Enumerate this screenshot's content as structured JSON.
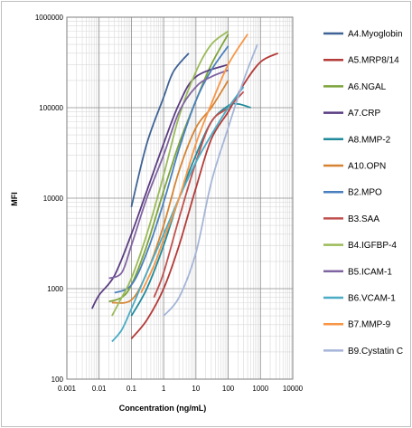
{
  "chart_data": {
    "type": "line",
    "title": "",
    "xlabel": "Concentration (ng/mL)",
    "ylabel": "MFI",
    "xscale": "log",
    "yscale": "log",
    "xlim": [
      0.001,
      10000
    ],
    "ylim": [
      100,
      1000000
    ],
    "x_ticks": [
      "0.001",
      "0.01",
      "0.1",
      "1",
      "10",
      "100",
      "1000",
      "10000"
    ],
    "y_ticks": [
      "100",
      "1000",
      "10000",
      "100000",
      "1000000"
    ],
    "grid": true,
    "legend_position": "right",
    "series": [
      {
        "name": "A4.Myoglobin",
        "color": "#3f6396",
        "points": [
          [
            0.1,
            8000
          ],
          [
            0.3,
            40000
          ],
          [
            1,
            130000
          ],
          [
            2,
            250000
          ],
          [
            6,
            400000
          ]
        ]
      },
      {
        "name": "A5.MRP8/14",
        "color": "#b33b38",
        "points": [
          [
            0.1,
            280
          ],
          [
            0.3,
            450
          ],
          [
            1,
            1000
          ],
          [
            3,
            3000
          ],
          [
            10,
            13000
          ],
          [
            30,
            45000
          ],
          [
            100,
            90000
          ],
          [
            300,
            180000
          ],
          [
            1000,
            320000
          ],
          [
            3500,
            400000
          ]
        ]
      },
      {
        "name": "A6.NGAL",
        "color": "#7da43b",
        "points": [
          [
            0.02,
            720
          ],
          [
            0.05,
            800
          ],
          [
            0.1,
            1100
          ],
          [
            0.3,
            3000
          ],
          [
            1,
            12000
          ],
          [
            3,
            40000
          ],
          [
            10,
            120000
          ],
          [
            30,
            300000
          ],
          [
            100,
            650000
          ]
        ]
      },
      {
        "name": "A7.CRP",
        "color": "#5b3d82",
        "points": [
          [
            0.006,
            600
          ],
          [
            0.01,
            850
          ],
          [
            0.03,
            1400
          ],
          [
            0.1,
            4000
          ],
          [
            0.3,
            12000
          ],
          [
            1,
            40000
          ],
          [
            3,
            110000
          ],
          [
            10,
            220000
          ],
          [
            100,
            300000
          ]
        ]
      },
      {
        "name": "A8.MMP-2",
        "color": "#1f8a9a",
        "points": [
          [
            0.1,
            500
          ],
          [
            0.3,
            1000
          ],
          [
            1,
            3000
          ],
          [
            3,
            10000
          ],
          [
            10,
            30000
          ],
          [
            30,
            70000
          ],
          [
            100,
            105000
          ],
          [
            200,
            110000
          ],
          [
            500,
            100000
          ]
        ]
      },
      {
        "name": "A10.OPN",
        "color": "#d58332",
        "points": [
          [
            0.025,
            700
          ],
          [
            0.1,
            750
          ],
          [
            0.3,
            1500
          ],
          [
            1,
            5000
          ],
          [
            3,
            20000
          ],
          [
            10,
            60000
          ],
          [
            30,
            100000
          ],
          [
            100,
            200000
          ]
        ]
      },
      {
        "name": "B2.MPO",
        "color": "#4a7fbe",
        "points": [
          [
            0.03,
            900
          ],
          [
            0.1,
            1100
          ],
          [
            0.3,
            2500
          ],
          [
            1,
            9000
          ],
          [
            3,
            35000
          ],
          [
            10,
            120000
          ],
          [
            30,
            260000
          ],
          [
            100,
            480000
          ]
        ]
      },
      {
        "name": "B3.SAA",
        "color": "#c0504d",
        "points": [
          [
            0.5,
            800
          ],
          [
            1,
            1500
          ],
          [
            3,
            6000
          ],
          [
            10,
            25000
          ],
          [
            30,
            70000
          ],
          [
            100,
            100000
          ],
          [
            300,
            150000
          ]
        ]
      },
      {
        "name": "B4.IGFBP-4",
        "color": "#9bbb59",
        "points": [
          [
            0.025,
            500
          ],
          [
            0.05,
            800
          ],
          [
            0.1,
            1300
          ],
          [
            0.3,
            4000
          ],
          [
            1,
            18000
          ],
          [
            3,
            80000
          ],
          [
            10,
            250000
          ],
          [
            30,
            500000
          ],
          [
            100,
            700000
          ]
        ]
      },
      {
        "name": "B5.ICAM-1",
        "color": "#8064a2",
        "points": [
          [
            0.02,
            1300
          ],
          [
            0.05,
            1500
          ],
          [
            0.1,
            3000
          ],
          [
            0.3,
            10000
          ],
          [
            1,
            30000
          ],
          [
            3,
            90000
          ],
          [
            10,
            170000
          ],
          [
            30,
            220000
          ],
          [
            100,
            260000
          ]
        ]
      },
      {
        "name": "B6.VCAM-1",
        "color": "#4bacc6",
        "points": [
          [
            0.025,
            260
          ],
          [
            0.05,
            350
          ],
          [
            0.1,
            600
          ],
          [
            0.3,
            1500
          ],
          [
            1,
            4000
          ],
          [
            3,
            10000
          ],
          [
            10,
            25000
          ],
          [
            30,
            50000
          ],
          [
            100,
            100000
          ],
          [
            300,
            170000
          ]
        ]
      },
      {
        "name": "B7.MMP-9",
        "color": "#f79646",
        "points": [
          [
            0.2,
            900
          ],
          [
            0.5,
            1800
          ],
          [
            1,
            3500
          ],
          [
            3,
            10000
          ],
          [
            10,
            40000
          ],
          [
            30,
            110000
          ],
          [
            100,
            300000
          ],
          [
            400,
            650000
          ]
        ]
      },
      {
        "name": "B9.Cystatin C",
        "color": "#a5b5d8",
        "points": [
          [
            1,
            500
          ],
          [
            3,
            800
          ],
          [
            10,
            2500
          ],
          [
            30,
            15000
          ],
          [
            100,
            60000
          ],
          [
            300,
            200000
          ],
          [
            800,
            500000
          ]
        ]
      }
    ]
  }
}
